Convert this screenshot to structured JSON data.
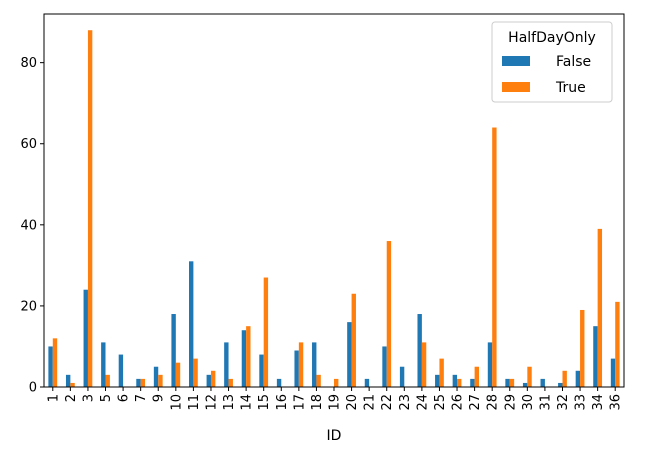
{
  "chart_data": {
    "type": "bar",
    "title": "",
    "xlabel": "ID",
    "ylabel": "",
    "categories": [
      "1",
      "2",
      "3",
      "5",
      "6",
      "7",
      "9",
      "10",
      "11",
      "12",
      "13",
      "14",
      "15",
      "16",
      "17",
      "18",
      "19",
      "20",
      "21",
      "22",
      "23",
      "24",
      "25",
      "26",
      "27",
      "28",
      "29",
      "30",
      "31",
      "32",
      "33",
      "34",
      "36"
    ],
    "series": [
      {
        "name": "False",
        "color": "#1f77b4",
        "values": [
          10,
          3,
          24,
          11,
          8,
          2,
          5,
          18,
          31,
          3,
          11,
          14,
          8,
          2,
          9,
          11,
          0,
          16,
          2,
          10,
          5,
          18,
          3,
          3,
          2,
          11,
          2,
          1,
          2,
          1,
          4,
          15,
          7
        ]
      },
      {
        "name": "True",
        "color": "#ff7f0e",
        "values": [
          12,
          1,
          88,
          3,
          0,
          2,
          3,
          6,
          7,
          4,
          2,
          15,
          27,
          0,
          11,
          3,
          2,
          23,
          0,
          36,
          0,
          11,
          7,
          2,
          5,
          64,
          2,
          5,
          0,
          4,
          19,
          39,
          21
        ]
      }
    ],
    "ylim": [
      0,
      92
    ],
    "yticks": [
      0,
      20,
      40,
      60,
      80
    ],
    "grid": false,
    "legend": {
      "title": "HalfDayOnly",
      "placement": "top-right"
    }
  }
}
